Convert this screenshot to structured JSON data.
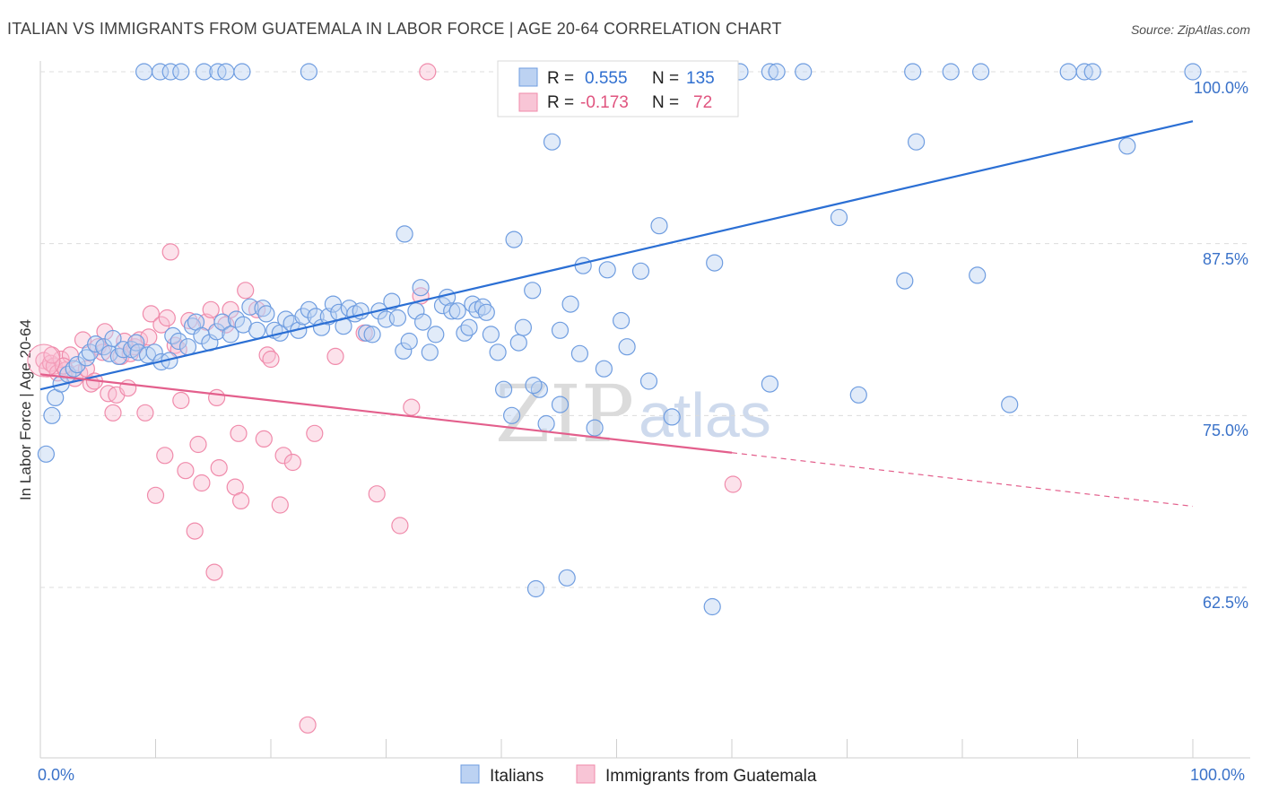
{
  "title": "ITALIAN VS IMMIGRANTS FROM GUATEMALA IN LABOR FORCE | AGE 20-64 CORRELATION CHART",
  "source": "Source: ZipAtlas.com",
  "watermark": {
    "zip": "ZIP",
    "atlas": "atlas"
  },
  "colors": {
    "blue": "#6f9de0",
    "blue_line": "#2b6fd4",
    "pink": "#f08bab",
    "pink_line": "#e35f8c"
  },
  "legend_box": {
    "rows": [
      {
        "r_label": "R =",
        "r_value": "0.555",
        "n_label": "N =",
        "n_value": "135"
      },
      {
        "r_label": "R =",
        "r_value": "-0.173",
        "n_label": "N =",
        "n_value": "72"
      }
    ]
  },
  "chart_data": {
    "type": "scatter",
    "title": "ITALIAN VS IMMIGRANTS FROM GUATEMALA IN LABOR FORCE | AGE 20-64 CORRELATION CHART",
    "xlabel": "",
    "ylabel": "In Labor Force | Age 20-64",
    "xlim": [
      0,
      100
    ],
    "ylim": [
      50,
      102
    ],
    "x_tick_labels": [
      "0.0%",
      "100.0%"
    ],
    "y_ticks": [
      62.5,
      75.0,
      87.5,
      100.0
    ],
    "y_tick_labels": [
      "62.5%",
      "75.0%",
      "87.5%",
      "100.0%"
    ],
    "legend": [
      "Italians",
      "Immigrants from Guatemala"
    ],
    "series": [
      {
        "name": "Italians",
        "r": 0.555,
        "n": 135,
        "trend": {
          "x": [
            0,
            100
          ],
          "y": [
            76.9,
            96.4
          ]
        },
        "points": [
          [
            0.5,
            72.2
          ],
          [
            1.0,
            75.0
          ],
          [
            1.3,
            76.3
          ],
          [
            1.8,
            77.3
          ],
          [
            2.4,
            78.0
          ],
          [
            2.9,
            78.4
          ],
          [
            3.2,
            78.7
          ],
          [
            4.0,
            79.2
          ],
          [
            4.3,
            79.6
          ],
          [
            4.8,
            80.2
          ],
          [
            5.5,
            80.0
          ],
          [
            6.0,
            79.5
          ],
          [
            6.3,
            80.6
          ],
          [
            6.8,
            79.3
          ],
          [
            7.2,
            79.8
          ],
          [
            7.9,
            79.8
          ],
          [
            8.3,
            80.3
          ],
          [
            8.5,
            79.6
          ],
          [
            9.3,
            79.4
          ],
          [
            9.9,
            79.6
          ],
          [
            10.5,
            78.9
          ],
          [
            11.2,
            79.0
          ],
          [
            11.5,
            80.8
          ],
          [
            12.0,
            80.4
          ],
          [
            12.8,
            80.0
          ],
          [
            13.2,
            81.5
          ],
          [
            13.5,
            81.8
          ],
          [
            14.0,
            80.8
          ],
          [
            14.7,
            80.3
          ],
          [
            15.3,
            81.1
          ],
          [
            15.8,
            81.8
          ],
          [
            16.5,
            80.9
          ],
          [
            17.0,
            82.0
          ],
          [
            17.6,
            81.6
          ],
          [
            18.2,
            82.9
          ],
          [
            18.8,
            81.2
          ],
          [
            19.3,
            82.8
          ],
          [
            19.6,
            82.4
          ],
          [
            20.3,
            81.2
          ],
          [
            20.8,
            81.0
          ],
          [
            21.3,
            82.0
          ],
          [
            21.8,
            81.7
          ],
          [
            22.4,
            81.2
          ],
          [
            22.8,
            82.2
          ],
          [
            23.3,
            82.7
          ],
          [
            23.9,
            82.2
          ],
          [
            24.4,
            81.4
          ],
          [
            25.0,
            82.2
          ],
          [
            25.4,
            83.1
          ],
          [
            25.9,
            82.5
          ],
          [
            26.3,
            81.5
          ],
          [
            26.8,
            82.8
          ],
          [
            27.3,
            82.4
          ],
          [
            27.8,
            82.6
          ],
          [
            28.3,
            81.0
          ],
          [
            28.8,
            80.9
          ],
          [
            29.4,
            82.6
          ],
          [
            30.0,
            82.0
          ],
          [
            30.5,
            83.3
          ],
          [
            31.0,
            82.1
          ],
          [
            31.5,
            79.7
          ],
          [
            32.0,
            80.4
          ],
          [
            32.6,
            82.6
          ],
          [
            33.2,
            81.8
          ],
          [
            33.8,
            79.6
          ],
          [
            34.3,
            80.9
          ],
          [
            34.9,
            83.0
          ],
          [
            35.3,
            83.6
          ],
          [
            35.7,
            82.6
          ],
          [
            36.2,
            82.6
          ],
          [
            36.8,
            81.0
          ],
          [
            37.5,
            83.1
          ],
          [
            37.9,
            82.7
          ],
          [
            38.4,
            82.9
          ],
          [
            38.7,
            82.5
          ],
          [
            39.1,
            80.9
          ],
          [
            39.7,
            79.6
          ],
          [
            40.2,
            76.9
          ],
          [
            40.9,
            75.0
          ],
          [
            41.5,
            80.3
          ],
          [
            41.9,
            81.4
          ],
          [
            42.7,
            84.1
          ],
          [
            43.3,
            76.9
          ],
          [
            43.9,
            74.4
          ],
          [
            44.4,
            94.9
          ],
          [
            45.1,
            75.8
          ],
          [
            46.0,
            83.1
          ],
          [
            47.1,
            85.9
          ],
          [
            48.1,
            74.1
          ],
          [
            49.2,
            85.6
          ],
          [
            50.4,
            81.9
          ],
          [
            50.9,
            80.0
          ],
          [
            52.1,
            85.5
          ],
          [
            52.8,
            77.5
          ],
          [
            53.7,
            88.8
          ],
          [
            54.8,
            74.9
          ],
          [
            58.5,
            86.1
          ],
          [
            63.3,
            77.3
          ],
          [
            69.3,
            89.4
          ],
          [
            71.0,
            76.5
          ],
          [
            75.0,
            84.8
          ],
          [
            76.0,
            94.9
          ],
          [
            81.3,
            85.2
          ],
          [
            84.1,
            75.8
          ],
          [
            94.3,
            94.6
          ],
          [
            9.0,
            100.0
          ],
          [
            10.4,
            100.0
          ],
          [
            11.3,
            100.0
          ],
          [
            12.2,
            100.0
          ],
          [
            14.2,
            100.0
          ],
          [
            15.4,
            100.0
          ],
          [
            16.1,
            100.0
          ],
          [
            17.5,
            100.0
          ],
          [
            23.3,
            100.0
          ],
          [
            60.7,
            100.0
          ],
          [
            63.3,
            100.0
          ],
          [
            63.9,
            100.0
          ],
          [
            66.2,
            100.0
          ],
          [
            75.7,
            100.0
          ],
          [
            79.0,
            100.0
          ],
          [
            81.6,
            100.0
          ],
          [
            89.2,
            100.0
          ],
          [
            90.6,
            100.0
          ],
          [
            91.3,
            100.0
          ],
          [
            100.0,
            100.0
          ],
          [
            31.6,
            88.2
          ],
          [
            41.1,
            87.8
          ],
          [
            43.0,
            62.4
          ],
          [
            45.7,
            63.2
          ],
          [
            58.3,
            61.1
          ],
          [
            33.0,
            84.3
          ],
          [
            37.2,
            81.4
          ],
          [
            45.1,
            81.2
          ],
          [
            46.8,
            79.5
          ],
          [
            48.9,
            78.4
          ],
          [
            42.8,
            77.2
          ]
        ]
      },
      {
        "name": "Immigrants from Guatemala",
        "r": -0.173,
        "n": 72,
        "trend_solid": {
          "x": [
            0,
            60
          ],
          "y": [
            78.0,
            72.3
          ]
        },
        "trend_dashed": {
          "x": [
            60,
            100
          ],
          "y": [
            72.3,
            68.4
          ]
        },
        "points": [
          [
            0.3,
            79.0
          ],
          [
            0.6,
            78.4
          ],
          [
            0.9,
            78.8
          ],
          [
            1.2,
            78.6
          ],
          [
            1.5,
            78.1
          ],
          [
            1.8,
            79.1
          ],
          [
            2.2,
            78.3
          ],
          [
            2.6,
            79.4
          ],
          [
            3.0,
            77.7
          ],
          [
            3.4,
            78.1
          ],
          [
            3.7,
            80.5
          ],
          [
            4.0,
            78.4
          ],
          [
            4.4,
            77.3
          ],
          [
            4.7,
            77.5
          ],
          [
            5.0,
            80.0
          ],
          [
            5.4,
            79.6
          ],
          [
            5.6,
            81.1
          ],
          [
            5.9,
            76.6
          ],
          [
            6.3,
            75.2
          ],
          [
            6.6,
            76.5
          ],
          [
            7.0,
            79.3
          ],
          [
            7.3,
            80.4
          ],
          [
            7.6,
            77.0
          ],
          [
            7.8,
            79.5
          ],
          [
            8.2,
            80.0
          ],
          [
            8.6,
            80.5
          ],
          [
            9.1,
            75.2
          ],
          [
            9.4,
            80.7
          ],
          [
            9.6,
            82.4
          ],
          [
            10.0,
            69.2
          ],
          [
            10.5,
            81.6
          ],
          [
            10.8,
            72.1
          ],
          [
            11.0,
            82.1
          ],
          [
            11.3,
            86.9
          ],
          [
            11.7,
            80.1
          ],
          [
            12.0,
            79.8
          ],
          [
            12.2,
            76.1
          ],
          [
            12.6,
            71.0
          ],
          [
            12.9,
            81.9
          ],
          [
            13.4,
            66.6
          ],
          [
            13.7,
            72.9
          ],
          [
            14.0,
            70.1
          ],
          [
            14.4,
            81.8
          ],
          [
            14.8,
            82.7
          ],
          [
            15.1,
            63.6
          ],
          [
            15.3,
            76.3
          ],
          [
            15.5,
            71.2
          ],
          [
            16.1,
            81.6
          ],
          [
            16.5,
            82.7
          ],
          [
            16.9,
            69.8
          ],
          [
            17.2,
            73.7
          ],
          [
            17.4,
            68.8
          ],
          [
            17.8,
            84.1
          ],
          [
            18.8,
            82.7
          ],
          [
            19.4,
            73.3
          ],
          [
            19.7,
            79.4
          ],
          [
            20.0,
            79.1
          ],
          [
            20.8,
            68.5
          ],
          [
            21.1,
            72.1
          ],
          [
            21.9,
            71.6
          ],
          [
            23.2,
            52.5
          ],
          [
            23.8,
            73.7
          ],
          [
            25.6,
            79.3
          ],
          [
            28.1,
            81.0
          ],
          [
            29.2,
            69.3
          ],
          [
            31.2,
            67.0
          ],
          [
            32.2,
            75.6
          ],
          [
            33.0,
            83.7
          ],
          [
            33.6,
            100.0
          ],
          [
            60.1,
            70.0
          ],
          [
            1.0,
            79.4
          ],
          [
            2.0,
            78.6
          ]
        ]
      }
    ]
  },
  "bottom_legend": [
    {
      "label": "Italians"
    },
    {
      "label": "Immigrants from Guatemala"
    }
  ]
}
